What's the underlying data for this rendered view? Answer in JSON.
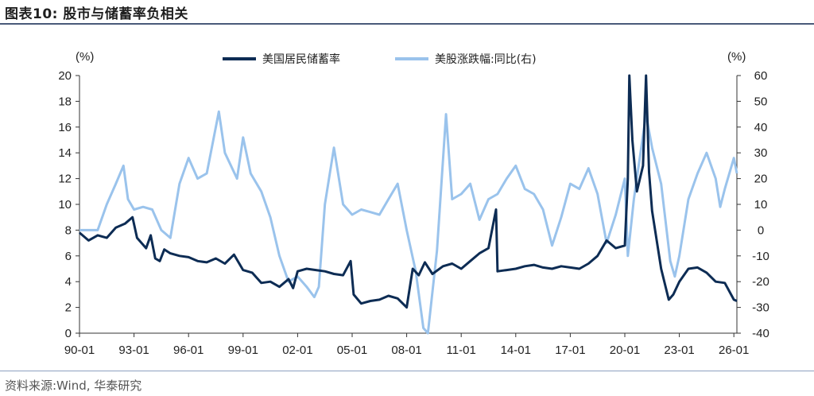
{
  "header": {
    "title": "图表10:  股市与储蓄率负相关"
  },
  "footer": {
    "source": "资料来源:Wind, 华泰研究"
  },
  "chart_data": {
    "type": "line",
    "title": "图表10:  股市与储蓄率负相关",
    "left_unit": "(%)",
    "right_unit": "(%)",
    "x_tick_labels": [
      "90-01",
      "93-01",
      "96-01",
      "99-01",
      "02-01",
      "05-01",
      "08-01",
      "11-01",
      "14-01",
      "17-01",
      "20-01",
      "23-01",
      "26-01"
    ],
    "x_range": [
      "1990-01",
      "2026-03"
    ],
    "ylim_left": [
      0,
      20
    ],
    "yticks_left": [
      0,
      2,
      4,
      6,
      8,
      10,
      12,
      14,
      16,
      18,
      20
    ],
    "ylim_right": [
      -40,
      60
    ],
    "yticks_right": [
      -40,
      -30,
      -20,
      -10,
      0,
      10,
      20,
      30,
      40,
      50,
      60
    ],
    "grid": false,
    "legend_position": "top",
    "series": [
      {
        "name": "美国居民储蓄率",
        "axis": "left",
        "color": "#0d2c54",
        "points": [
          [
            "1990-01",
            7.8
          ],
          [
            "1990-07",
            7.2
          ],
          [
            "1991-01",
            7.6
          ],
          [
            "1991-07",
            7.4
          ],
          [
            "1992-01",
            8.2
          ],
          [
            "1992-07",
            8.5
          ],
          [
            "1992-12",
            9.0
          ],
          [
            "1993-03",
            7.4
          ],
          [
            "1993-06",
            7.0
          ],
          [
            "1993-09",
            6.6
          ],
          [
            "1993-12",
            7.6
          ],
          [
            "1994-03",
            5.8
          ],
          [
            "1994-06",
            5.6
          ],
          [
            "1994-09",
            6.5
          ],
          [
            "1995-01",
            6.2
          ],
          [
            "1995-07",
            6.0
          ],
          [
            "1996-01",
            5.9
          ],
          [
            "1996-07",
            5.6
          ],
          [
            "1997-01",
            5.5
          ],
          [
            "1997-07",
            5.8
          ],
          [
            "1998-01",
            5.4
          ],
          [
            "1998-07",
            6.1
          ],
          [
            "1999-01",
            4.9
          ],
          [
            "1999-07",
            4.7
          ],
          [
            "2000-01",
            3.9
          ],
          [
            "2000-07",
            4.0
          ],
          [
            "2001-01",
            3.6
          ],
          [
            "2001-07",
            4.2
          ],
          [
            "2001-10",
            3.5
          ],
          [
            "2002-01",
            4.8
          ],
          [
            "2002-07",
            5.0
          ],
          [
            "2003-01",
            4.9
          ],
          [
            "2003-07",
            4.8
          ],
          [
            "2004-01",
            4.6
          ],
          [
            "2004-07",
            4.5
          ],
          [
            "2004-12",
            5.6
          ],
          [
            "2005-02",
            3.0
          ],
          [
            "2005-07",
            2.3
          ],
          [
            "2006-01",
            2.5
          ],
          [
            "2006-07",
            2.6
          ],
          [
            "2007-01",
            2.9
          ],
          [
            "2007-07",
            2.7
          ],
          [
            "2008-01",
            2.0
          ],
          [
            "2008-05",
            5.0
          ],
          [
            "2008-09",
            4.5
          ],
          [
            "2009-01",
            5.5
          ],
          [
            "2009-06",
            4.6
          ],
          [
            "2010-01",
            5.2
          ],
          [
            "2010-07",
            5.4
          ],
          [
            "2011-01",
            5.0
          ],
          [
            "2011-07",
            5.6
          ],
          [
            "2012-01",
            6.2
          ],
          [
            "2012-07",
            6.6
          ],
          [
            "2012-12",
            9.6
          ],
          [
            "2013-01",
            4.8
          ],
          [
            "2013-07",
            4.9
          ],
          [
            "2014-01",
            5.0
          ],
          [
            "2014-07",
            5.2
          ],
          [
            "2015-01",
            5.3
          ],
          [
            "2015-07",
            5.1
          ],
          [
            "2016-01",
            5.0
          ],
          [
            "2016-07",
            5.2
          ],
          [
            "2017-01",
            5.1
          ],
          [
            "2017-07",
            5.0
          ],
          [
            "2018-01",
            5.4
          ],
          [
            "2018-07",
            6.0
          ],
          [
            "2019-01",
            7.2
          ],
          [
            "2019-07",
            6.6
          ],
          [
            "2020-01",
            6.8
          ],
          [
            "2020-03",
            12.0
          ],
          [
            "2020-04",
            20.0
          ],
          [
            "2020-06",
            15.0
          ],
          [
            "2020-09",
            11.0
          ],
          [
            "2021-01",
            13.0
          ],
          [
            "2021-03",
            20.0
          ],
          [
            "2021-05",
            12.5
          ],
          [
            "2021-07",
            9.5
          ],
          [
            "2022-01",
            5.0
          ],
          [
            "2022-06",
            2.6
          ],
          [
            "2022-09",
            3.0
          ],
          [
            "2023-01",
            4.0
          ],
          [
            "2023-07",
            5.0
          ],
          [
            "2024-01",
            5.1
          ],
          [
            "2024-07",
            4.7
          ],
          [
            "2025-01",
            4.0
          ],
          [
            "2025-07",
            3.9
          ],
          [
            "2026-01",
            2.6
          ],
          [
            "2026-03",
            2.5
          ]
        ]
      },
      {
        "name": "美股涨跌幅:同比(右)",
        "axis": "right",
        "color": "#9ac3ec",
        "points": [
          [
            "1990-01",
            0
          ],
          [
            "1990-07",
            0
          ],
          [
            "1991-01",
            0
          ],
          [
            "1991-07",
            10
          ],
          [
            "1992-01",
            18
          ],
          [
            "1992-06",
            25
          ],
          [
            "1992-09",
            12
          ],
          [
            "1993-01",
            8
          ],
          [
            "1993-07",
            9
          ],
          [
            "1994-01",
            8
          ],
          [
            "1994-07",
            0
          ],
          [
            "1995-01",
            -3
          ],
          [
            "1995-07",
            18
          ],
          [
            "1996-01",
            28
          ],
          [
            "1996-07",
            20
          ],
          [
            "1997-01",
            22
          ],
          [
            "1997-09",
            46
          ],
          [
            "1998-01",
            30
          ],
          [
            "1998-09",
            20
          ],
          [
            "1999-01",
            36
          ],
          [
            "1999-06",
            22
          ],
          [
            "2000-01",
            15
          ],
          [
            "2000-07",
            5
          ],
          [
            "2001-01",
            -10
          ],
          [
            "2001-07",
            -20
          ],
          [
            "2002-01",
            -18
          ],
          [
            "2002-07",
            -22
          ],
          [
            "2002-12",
            -26
          ],
          [
            "2003-03",
            -22
          ],
          [
            "2003-07",
            10
          ],
          [
            "2004-01",
            32
          ],
          [
            "2004-07",
            10
          ],
          [
            "2005-01",
            6
          ],
          [
            "2005-07",
            8
          ],
          [
            "2006-01",
            7
          ],
          [
            "2006-07",
            6
          ],
          [
            "2007-01",
            12
          ],
          [
            "2007-07",
            18
          ],
          [
            "2008-01",
            0
          ],
          [
            "2008-07",
            -16
          ],
          [
            "2008-12",
            -38
          ],
          [
            "2009-03",
            -40
          ],
          [
            "2009-09",
            -8
          ],
          [
            "2010-03",
            45
          ],
          [
            "2010-07",
            12
          ],
          [
            "2011-01",
            14
          ],
          [
            "2011-07",
            18
          ],
          [
            "2012-01",
            4
          ],
          [
            "2012-07",
            12
          ],
          [
            "2013-01",
            14
          ],
          [
            "2013-07",
            20
          ],
          [
            "2014-01",
            25
          ],
          [
            "2014-07",
            16
          ],
          [
            "2015-01",
            14
          ],
          [
            "2015-07",
            8
          ],
          [
            "2016-01",
            -6
          ],
          [
            "2016-07",
            5
          ],
          [
            "2017-01",
            18
          ],
          [
            "2017-07",
            16
          ],
          [
            "2018-01",
            24
          ],
          [
            "2018-07",
            14
          ],
          [
            "2019-01",
            -5
          ],
          [
            "2019-07",
            6
          ],
          [
            "2020-01",
            20
          ],
          [
            "2020-03",
            -10
          ],
          [
            "2020-07",
            12
          ],
          [
            "2021-03",
            45
          ],
          [
            "2021-07",
            32
          ],
          [
            "2022-01",
            18
          ],
          [
            "2022-07",
            -12
          ],
          [
            "2022-10",
            -18
          ],
          [
            "2023-01",
            -10
          ],
          [
            "2023-07",
            12
          ],
          [
            "2024-01",
            22
          ],
          [
            "2024-07",
            30
          ],
          [
            "2025-01",
            20
          ],
          [
            "2025-04",
            9
          ],
          [
            "2025-07",
            16
          ],
          [
            "2026-01",
            28
          ],
          [
            "2026-03",
            22
          ]
        ]
      }
    ]
  }
}
